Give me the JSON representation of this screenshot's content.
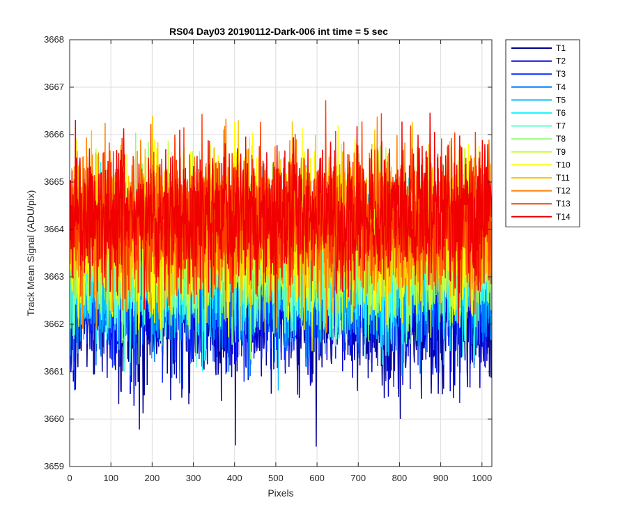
{
  "chart_data": {
    "type": "line",
    "title": "RS04 Day03 20190112-Dark-006 int time = 5 sec",
    "xlabel": "Pixels",
    "ylabel": "Track Mean Signal (ADU/pix)",
    "xlim": [
      0,
      1024
    ],
    "ylim": [
      3659,
      3668
    ],
    "xticks": [
      0,
      100,
      200,
      300,
      400,
      500,
      600,
      700,
      800,
      900,
      1000
    ],
    "yticks": [
      3659,
      3660,
      3661,
      3662,
      3663,
      3664,
      3665,
      3666,
      3667,
      3668
    ],
    "grid": true,
    "legend_position": "outside-top-right",
    "num_pixels": 1024,
    "series": [
      {
        "name": "T1",
        "color": "#00008F",
        "mean": 3662.3,
        "spread": 0.75
      },
      {
        "name": "T2",
        "color": "#0000D6",
        "mean": 3662.5,
        "spread": 0.75
      },
      {
        "name": "T3",
        "color": "#0A28FF",
        "mean": 3662.7,
        "spread": 0.75
      },
      {
        "name": "T4",
        "color": "#007AFF",
        "mean": 3662.9,
        "spread": 0.75
      },
      {
        "name": "T5",
        "color": "#00BFFF",
        "mean": 3663.1,
        "spread": 0.75
      },
      {
        "name": "T6",
        "color": "#1FF5FF",
        "mean": 3663.3,
        "spread": 0.75
      },
      {
        "name": "T7",
        "color": "#62FFCC",
        "mean": 3663.4,
        "spread": 0.75
      },
      {
        "name": "T8",
        "color": "#8CFF73",
        "mean": 3663.5,
        "spread": 0.75
      },
      {
        "name": "T9",
        "color": "#C8FF33",
        "mean": 3663.7,
        "spread": 0.75
      },
      {
        "name": "T10",
        "color": "#FFFF00",
        "mean": 3663.9,
        "spread": 0.8
      },
      {
        "name": "T11",
        "color": "#FFC200",
        "mean": 3664.0,
        "spread": 0.75
      },
      {
        "name": "T12",
        "color": "#FF8000",
        "mean": 3664.1,
        "spread": 0.75
      },
      {
        "name": "T13",
        "color": "#FF3D00",
        "mean": 3664.2,
        "spread": 0.75
      },
      {
        "name": "T14",
        "color": "#F00000",
        "mean": 3664.3,
        "spread": 0.75
      }
    ]
  }
}
